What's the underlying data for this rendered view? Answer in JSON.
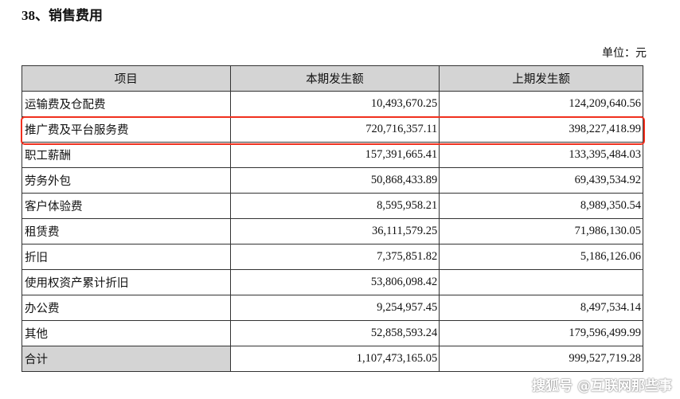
{
  "title": "38、销售费用",
  "unit": "单位：元",
  "table": {
    "headers": [
      "项目",
      "本期发生额",
      "上期发生额"
    ],
    "rows": [
      [
        "运输费及仓配费",
        "10,493,670.25",
        "124,209,640.56"
      ],
      [
        "推广费及平台服务费",
        "720,716,357.11",
        "398,227,418.99"
      ],
      [
        "职工薪酬",
        "157,391,665.41",
        "133,395,484.03"
      ],
      [
        "劳务外包",
        "50,868,433.89",
        "69,439,534.92"
      ],
      [
        "客户体验费",
        "8,595,958.21",
        "8,989,350.54"
      ],
      [
        "租赁费",
        "36,111,579.25",
        "71,986,130.05"
      ],
      [
        "折旧",
        "7,375,851.82",
        "5,186,126.06"
      ],
      [
        "使用权资产累计折旧",
        "53,806,098.42",
        ""
      ],
      [
        "办公费",
        "9,254,957.45",
        "8,497,534.14"
      ],
      [
        "其他",
        "52,858,593.24",
        "179,596,499.99"
      ],
      [
        "合计",
        "1,107,473,165.05",
        "999,527,719.28"
      ]
    ],
    "highlighted_row": "推广费及平台服务费",
    "highlight_color": "#f0301e"
  },
  "watermark": "搜狐号 @互联网那些事"
}
